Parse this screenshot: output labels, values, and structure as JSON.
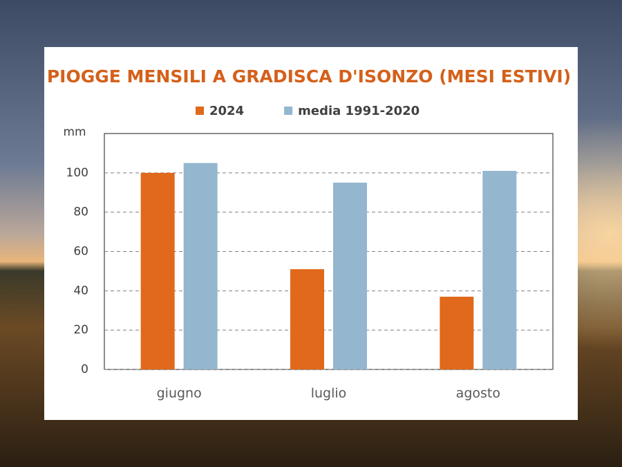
{
  "chart_data": {
    "type": "bar",
    "title": "PIOGGE MENSILI A GRADISCA D'ISONZO (MESI ESTIVI)",
    "y_label": "mm",
    "categories": [
      "giugno",
      "luglio",
      "agosto"
    ],
    "series": [
      {
        "name": "2024",
        "color": "#e0691b",
        "values": [
          100,
          51,
          37
        ]
      },
      {
        "name": "media 1991-2020",
        "color": "#94b6cf",
        "values": [
          105,
          95,
          101
        ]
      }
    ],
    "ylim": [
      0,
      120
    ],
    "yticks": [
      0,
      20,
      40,
      60,
      80,
      100
    ],
    "grid": true,
    "legend": "top"
  }
}
